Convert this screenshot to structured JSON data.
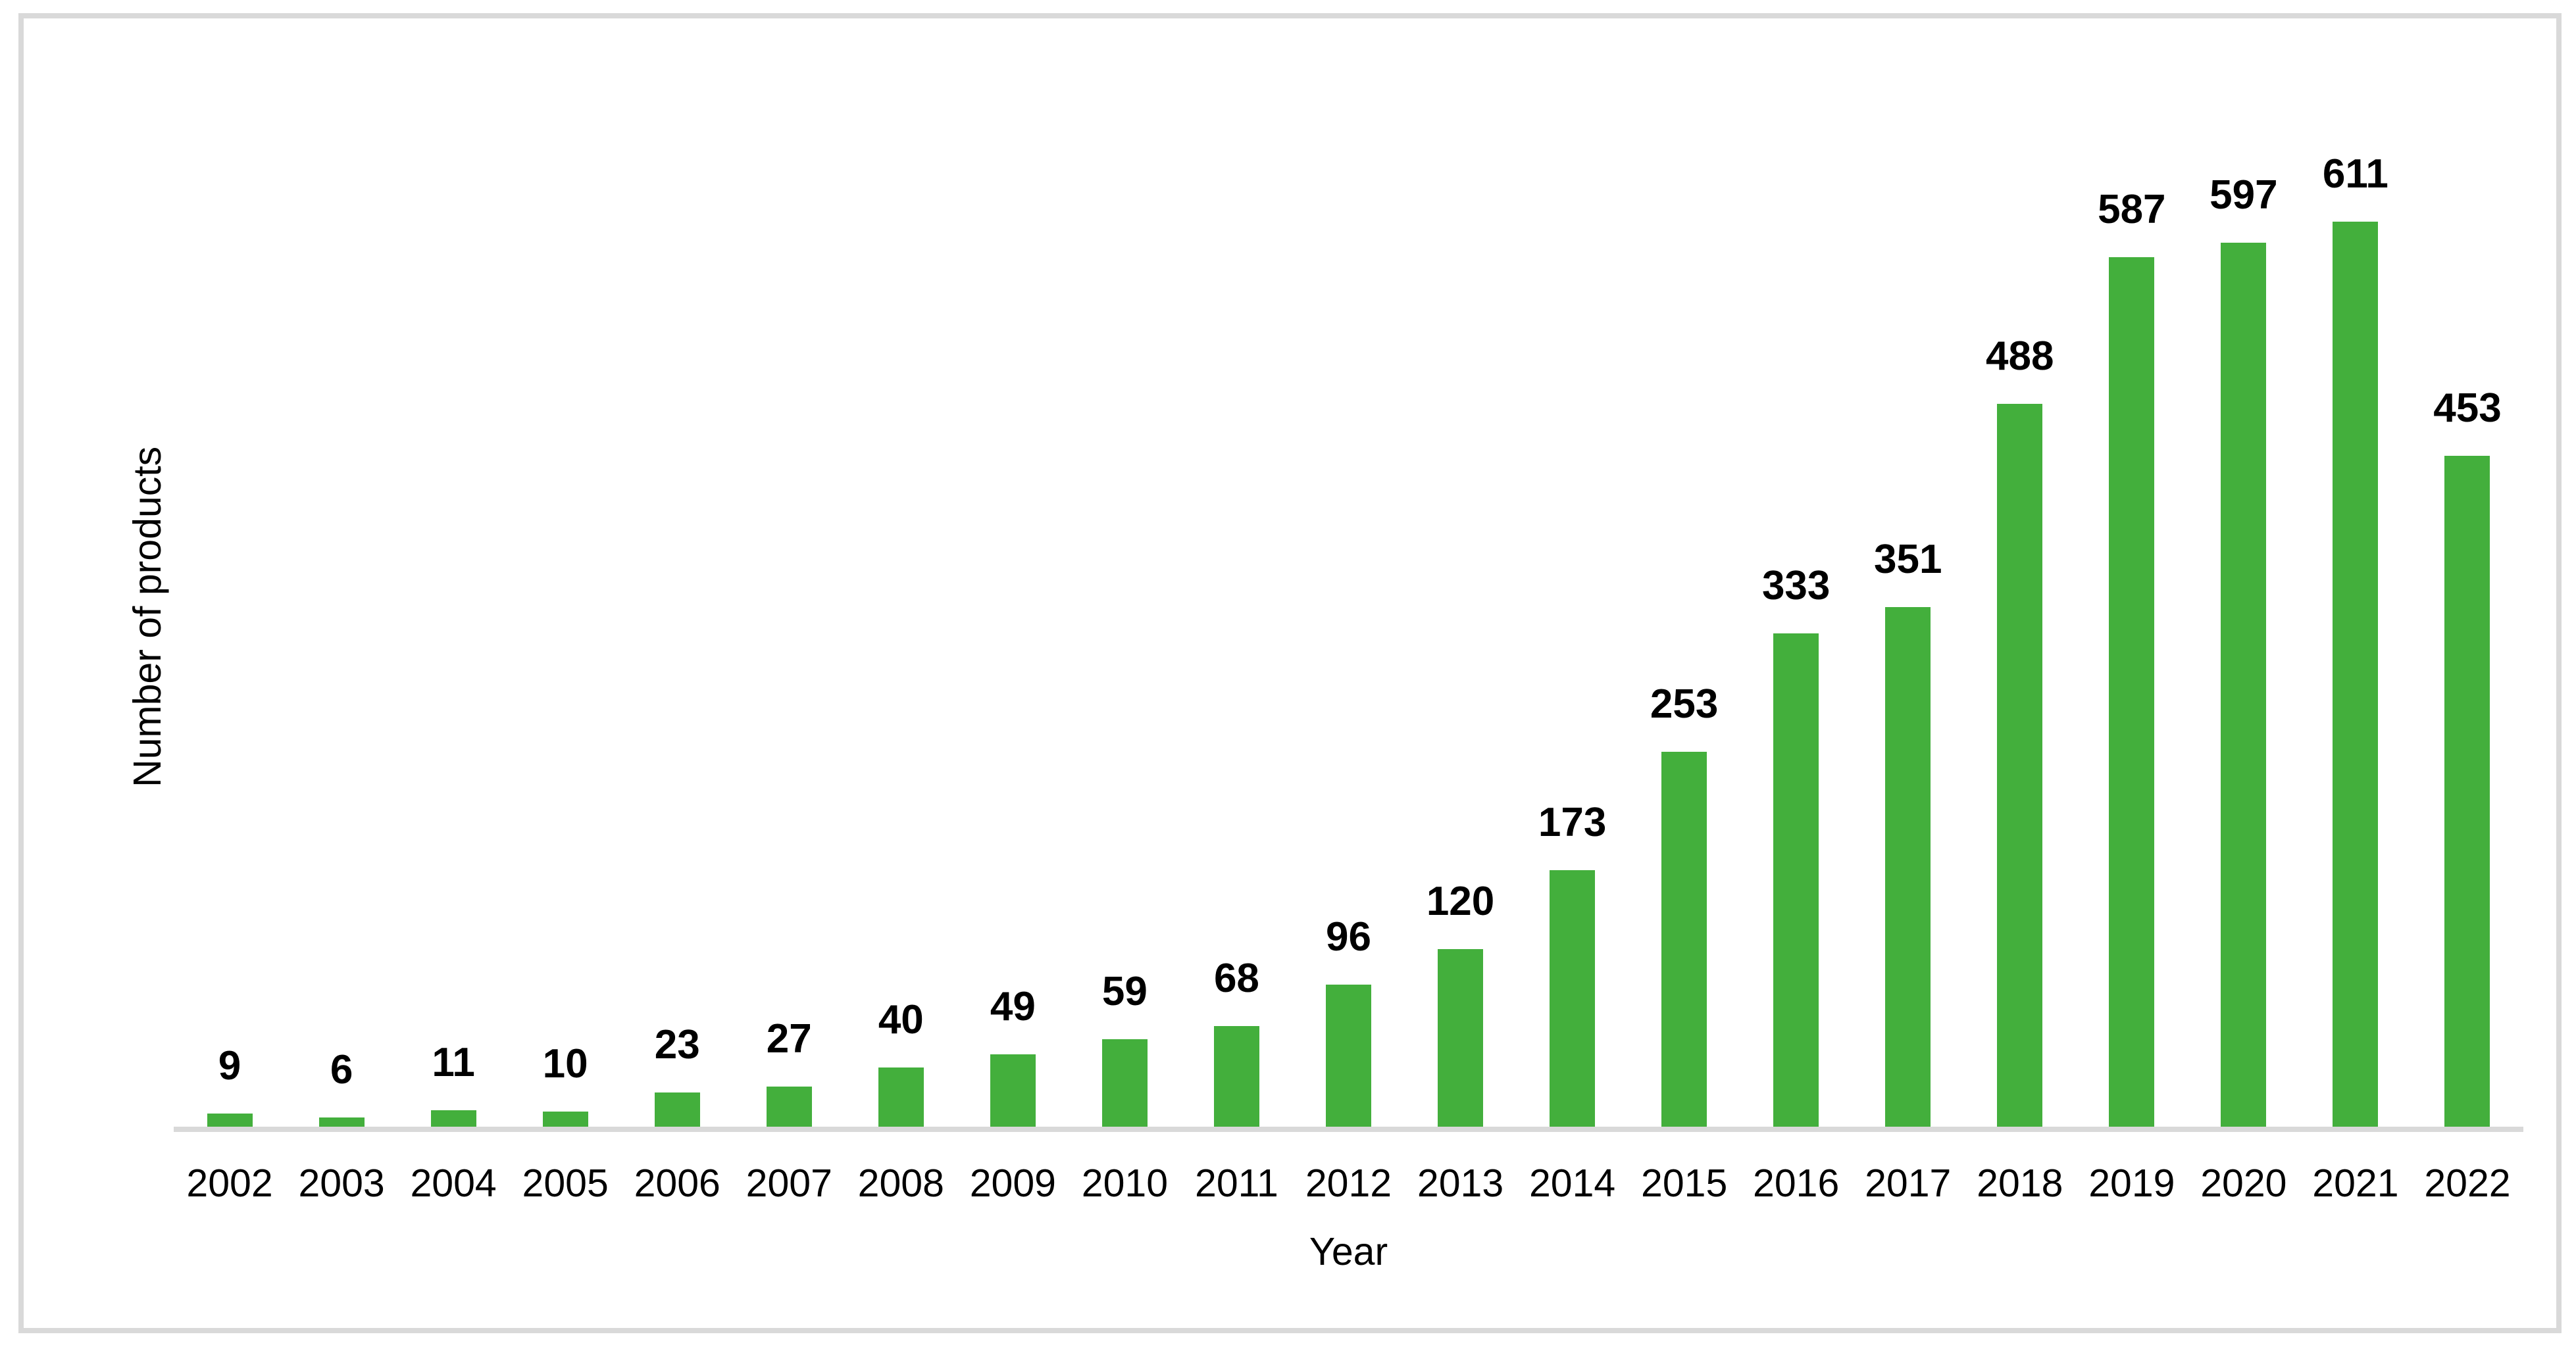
{
  "chart_data": {
    "type": "bar",
    "title": "",
    "xlabel": "Year",
    "ylabel": "Number of products",
    "categories": [
      "2002",
      "2003",
      "2004",
      "2005",
      "2006",
      "2007",
      "2008",
      "2009",
      "2010",
      "2011",
      "2012",
      "2013",
      "2014",
      "2015",
      "2016",
      "2017",
      "2018",
      "2019",
      "2020",
      "2021",
      "2022"
    ],
    "values": [
      9,
      6,
      11,
      10,
      23,
      27,
      40,
      49,
      59,
      68,
      96,
      120,
      173,
      253,
      333,
      351,
      488,
      587,
      597,
      611,
      453
    ],
    "ylim": [
      0,
      650
    ],
    "grid": false,
    "legend_position": "none",
    "data_labels_position": "outside-end",
    "bar_color": "#43AF3C",
    "axis_line_color": "#d9d9d9",
    "frame_border_color": "#d9d9d9",
    "text_color": "#000000"
  }
}
